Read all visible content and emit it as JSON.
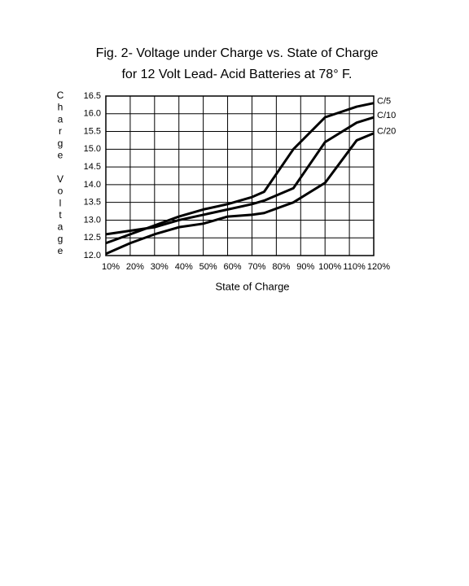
{
  "chart_data": {
    "type": "line",
    "title": [
      "Fig. 2-  Voltage under Charge vs. State of Charge",
      "for 12 Volt Lead- Acid Batteries at 78° F."
    ],
    "ylabel": "Charge Voltage",
    "xlabel": "State of Charge",
    "x": [
      10,
      20,
      30,
      40,
      50,
      60,
      70,
      75,
      87,
      100,
      113,
      120
    ],
    "series": [
      {
        "name": "C/5",
        "color": "#000000",
        "values": [
          12.35,
          12.6,
          12.85,
          13.1,
          13.3,
          13.45,
          13.65,
          13.8,
          15.0,
          15.9,
          16.2,
          16.3
        ]
      },
      {
        "name": "C/10",
        "color": "#000000",
        "values": [
          12.6,
          12.7,
          12.8,
          13.0,
          13.15,
          13.3,
          13.45,
          13.55,
          13.9,
          15.2,
          15.75,
          15.9
        ]
      },
      {
        "name": "C/20",
        "color": "#000000",
        "values": [
          12.05,
          12.35,
          12.6,
          12.8,
          12.9,
          13.1,
          13.15,
          13.2,
          13.5,
          14.05,
          15.25,
          15.45
        ]
      }
    ],
    "xlim": [
      10,
      120
    ],
    "xticks": [
      {
        "value": 10,
        "label": "10%"
      },
      {
        "value": 20,
        "label": "20%"
      },
      {
        "value": 30,
        "label": "30%"
      },
      {
        "value": 40,
        "label": "40%"
      },
      {
        "value": 50,
        "label": "50%"
      },
      {
        "value": 60,
        "label": "60%"
      },
      {
        "value": 70,
        "label": "70%"
      },
      {
        "value": 80,
        "label": "80%"
      },
      {
        "value": 90,
        "label": "90%"
      },
      {
        "value": 100,
        "label": "100%"
      },
      {
        "value": 110,
        "label": "110%"
      },
      {
        "value": 120,
        "label": "120%"
      }
    ],
    "ylim": [
      12.0,
      16.5
    ],
    "yticks": [
      {
        "value": 12.0,
        "label": "12.0"
      },
      {
        "value": 12.5,
        "label": "12.5"
      },
      {
        "value": 13.0,
        "label": "13.0"
      },
      {
        "value": 13.5,
        "label": "13.5"
      },
      {
        "value": 14.0,
        "label": "14.0"
      },
      {
        "value": 14.5,
        "label": "14.5"
      },
      {
        "value": 15.0,
        "label": "15.0"
      },
      {
        "value": 15.5,
        "label": "15.5"
      },
      {
        "value": 16.0,
        "label": "16.0"
      },
      {
        "value": 16.5,
        "label": "16.5"
      }
    ],
    "grid": true
  }
}
